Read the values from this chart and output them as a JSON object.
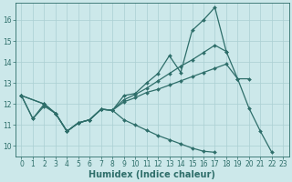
{
  "bg_color": "#cce8ea",
  "grid_color": "#aacfd2",
  "line_color": "#2e6e6a",
  "xlabel": "Humidex (Indice chaleur)",
  "xlabel_fontsize": 7,
  "tick_fontsize": 5.5,
  "xlim": [
    -0.5,
    23.5
  ],
  "ylim": [
    9.5,
    16.8
  ],
  "yticks": [
    10,
    11,
    12,
    13,
    14,
    15,
    16
  ],
  "xticks": [
    0,
    1,
    2,
    3,
    4,
    5,
    6,
    7,
    8,
    9,
    10,
    11,
    12,
    13,
    14,
    15,
    16,
    17,
    18,
    19,
    20,
    21,
    22,
    23
  ],
  "line1_x": [
    0,
    1,
    2,
    3,
    4,
    5,
    6,
    7,
    8,
    9,
    10,
    11,
    12,
    13,
    14,
    15,
    16,
    17,
    18,
    19,
    20,
    21,
    22
  ],
  "line1_y": [
    12.4,
    11.3,
    11.9,
    11.55,
    10.7,
    11.1,
    11.25,
    11.75,
    11.7,
    12.4,
    12.5,
    13.0,
    13.45,
    14.3,
    13.5,
    15.5,
    16.0,
    16.6,
    14.5,
    13.2,
    11.8,
    10.7,
    9.7
  ],
  "line2_x": [
    0,
    2,
    3,
    4,
    5,
    6,
    7,
    8,
    9,
    10,
    11,
    12,
    13,
    14,
    15,
    16,
    17,
    18
  ],
  "line2_y": [
    12.4,
    12.0,
    11.55,
    10.7,
    11.1,
    11.25,
    11.75,
    11.7,
    12.2,
    12.45,
    12.75,
    13.1,
    13.45,
    13.8,
    14.1,
    14.45,
    14.8,
    14.5
  ],
  "line3_x": [
    0,
    2,
    3,
    4,
    5,
    6,
    7,
    8,
    9,
    10,
    11,
    12,
    13,
    14,
    15,
    16,
    17,
    18,
    19,
    20
  ],
  "line3_y": [
    12.4,
    12.0,
    11.55,
    10.7,
    11.1,
    11.25,
    11.75,
    11.7,
    12.1,
    12.3,
    12.55,
    12.7,
    12.9,
    13.1,
    13.3,
    13.5,
    13.7,
    13.9,
    13.2,
    13.2
  ],
  "line4_x": [
    0,
    1,
    2,
    3,
    4,
    5,
    6,
    7,
    8,
    9,
    10,
    11,
    12,
    13,
    14,
    15,
    16,
    17,
    18,
    19,
    20,
    21,
    22
  ],
  "line4_y": [
    12.4,
    11.3,
    12.0,
    11.55,
    10.7,
    11.1,
    11.25,
    11.75,
    11.7,
    11.25,
    11.0,
    10.75,
    10.5,
    10.3,
    10.1,
    9.9,
    9.75,
    9.7,
    null,
    null,
    null,
    null,
    null
  ]
}
